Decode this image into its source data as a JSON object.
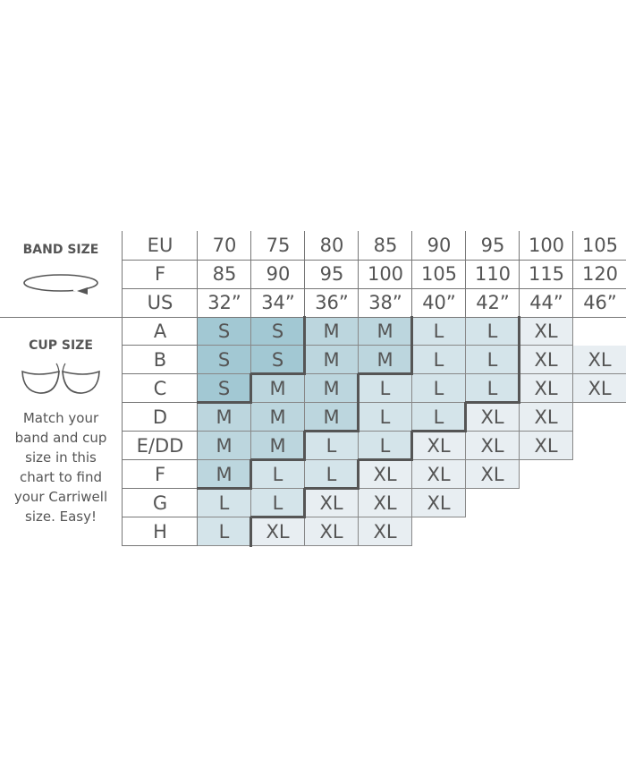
{
  "band_section": {
    "title": "BAND SIZE",
    "icon": "band-loop-arrow-icon"
  },
  "cup_section": {
    "title": "CUP SIZE",
    "icon": "bra-cups-icon"
  },
  "instructions": [
    "Match your",
    "band and cup",
    "size in this",
    "chart to find",
    "your Carriwell",
    "size. Easy!"
  ],
  "band_rows": [
    {
      "label": "EU",
      "values": [
        "70",
        "75",
        "80",
        "85",
        "90",
        "95",
        "100",
        "105"
      ]
    },
    {
      "label": "F",
      "values": [
        "85",
        "90",
        "95",
        "100",
        "105",
        "110",
        "115",
        "120"
      ]
    },
    {
      "label": "US",
      "values": [
        "32”",
        "34”",
        "36”",
        "38”",
        "40”",
        "42”",
        "44”",
        "46”"
      ]
    }
  ],
  "cup_rows": [
    {
      "label": "A",
      "sizes": [
        "S",
        "S",
        "M",
        "M",
        "L",
        "L",
        "XL",
        ""
      ]
    },
    {
      "label": "B",
      "sizes": [
        "S",
        "S",
        "M",
        "M",
        "L",
        "L",
        "XL",
        "XL"
      ]
    },
    {
      "label": "C",
      "sizes": [
        "S",
        "M",
        "M",
        "L",
        "L",
        "L",
        "XL",
        "XL"
      ]
    },
    {
      "label": "D",
      "sizes": [
        "M",
        "M",
        "M",
        "L",
        "L",
        "XL",
        "XL",
        ""
      ]
    },
    {
      "label": "E/DD",
      "sizes": [
        "M",
        "M",
        "L",
        "L",
        "XL",
        "XL",
        "XL",
        ""
      ]
    },
    {
      "label": "F",
      "sizes": [
        "M",
        "L",
        "L",
        "XL",
        "XL",
        "XL",
        "",
        ""
      ]
    },
    {
      "label": "G",
      "sizes": [
        "L",
        "L",
        "XL",
        "XL",
        "XL",
        "",
        "",
        ""
      ]
    },
    {
      "label": "H",
      "sizes": [
        "L",
        "XL",
        "XL",
        "XL",
        "",
        "",
        "",
        ""
      ]
    }
  ],
  "size_colors": {
    "S": "#a2c8d3",
    "M": "#bcd6de",
    "L": "#d4e4ea",
    "XL": "#e8eef2"
  }
}
